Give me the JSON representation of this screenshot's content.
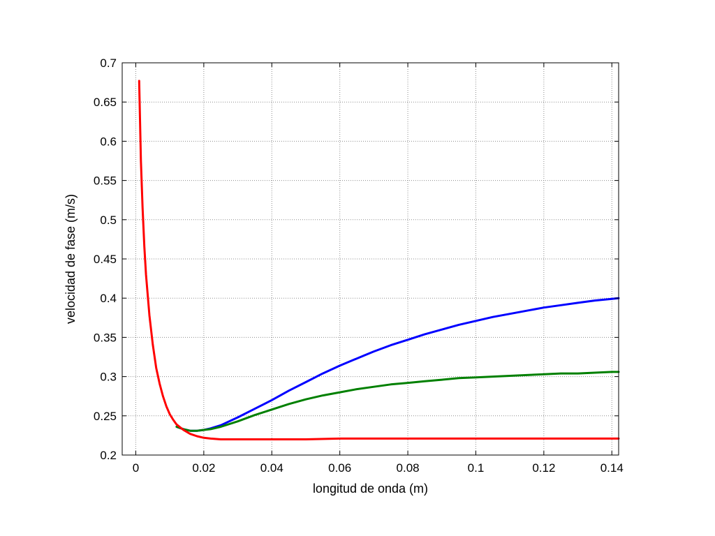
{
  "chart_data": {
    "type": "line",
    "title": "",
    "xlabel": "longitud de onda (m)",
    "ylabel": "velocidad de fase (m/s)",
    "xlim": [
      -0.004,
      0.142
    ],
    "ylim": [
      0.2,
      0.7
    ],
    "xticks": [
      0,
      0.02,
      0.04,
      0.06,
      0.08,
      0.1,
      0.12,
      0.14
    ],
    "xtick_labels": [
      "0",
      "0.02",
      "0.04",
      "0.06",
      "0.08",
      "0.1",
      "0.12",
      "0.14"
    ],
    "yticks": [
      0.2,
      0.25,
      0.3,
      0.35,
      0.4,
      0.45,
      0.5,
      0.55,
      0.6,
      0.65,
      0.7
    ],
    "ytick_labels": [
      "0.2",
      "0.25",
      "0.3",
      "0.35",
      "0.4",
      "0.45",
      "0.5",
      "0.55",
      "0.6",
      "0.65",
      "0.7"
    ],
    "grid": true,
    "legend": "none",
    "series": [
      {
        "color": "#0000ff",
        "x": [
          0.012,
          0.014,
          0.016,
          0.018,
          0.02,
          0.022,
          0.025,
          0.03,
          0.035,
          0.04,
          0.045,
          0.05,
          0.055,
          0.06,
          0.065,
          0.07,
          0.075,
          0.08,
          0.085,
          0.09,
          0.095,
          0.1,
          0.105,
          0.11,
          0.115,
          0.12,
          0.125,
          0.13,
          0.135,
          0.14,
          0.142
        ],
        "y": [
          0.236,
          0.233,
          0.231,
          0.231,
          0.232,
          0.234,
          0.238,
          0.248,
          0.259,
          0.27,
          0.282,
          0.293,
          0.304,
          0.314,
          0.323,
          0.332,
          0.34,
          0.347,
          0.354,
          0.36,
          0.366,
          0.371,
          0.376,
          0.38,
          0.384,
          0.388,
          0.391,
          0.394,
          0.397,
          0.399,
          0.4
        ]
      },
      {
        "color": "#008000",
        "x": [
          0.012,
          0.014,
          0.016,
          0.018,
          0.02,
          0.022,
          0.025,
          0.03,
          0.035,
          0.04,
          0.045,
          0.05,
          0.055,
          0.06,
          0.065,
          0.07,
          0.075,
          0.08,
          0.085,
          0.09,
          0.095,
          0.1,
          0.105,
          0.11,
          0.115,
          0.12,
          0.125,
          0.13,
          0.135,
          0.14,
          0.142
        ],
        "y": [
          0.236,
          0.233,
          0.231,
          0.231,
          0.232,
          0.233,
          0.236,
          0.243,
          0.251,
          0.258,
          0.265,
          0.271,
          0.276,
          0.28,
          0.284,
          0.287,
          0.29,
          0.292,
          0.294,
          0.296,
          0.298,
          0.299,
          0.3,
          0.301,
          0.302,
          0.303,
          0.304,
          0.304,
          0.305,
          0.306,
          0.306
        ]
      },
      {
        "color": "#ff0000",
        "x": [
          0.001,
          0.0015,
          0.002,
          0.0025,
          0.003,
          0.004,
          0.005,
          0.006,
          0.007,
          0.008,
          0.009,
          0.01,
          0.011,
          0.012,
          0.014,
          0.016,
          0.018,
          0.02,
          0.022,
          0.025,
          0.03,
          0.035,
          0.04,
          0.05,
          0.06,
          0.07,
          0.08,
          0.09,
          0.1,
          0.11,
          0.12,
          0.13,
          0.14,
          0.142
        ],
        "y": [
          0.677,
          0.575,
          0.515,
          0.466,
          0.43,
          0.378,
          0.341,
          0.311,
          0.291,
          0.275,
          0.262,
          0.252,
          0.245,
          0.239,
          0.232,
          0.227,
          0.224,
          0.222,
          0.221,
          0.22,
          0.22,
          0.22,
          0.22,
          0.22,
          0.221,
          0.221,
          0.221,
          0.221,
          0.221,
          0.221,
          0.221,
          0.221,
          0.221,
          0.221
        ]
      }
    ]
  }
}
